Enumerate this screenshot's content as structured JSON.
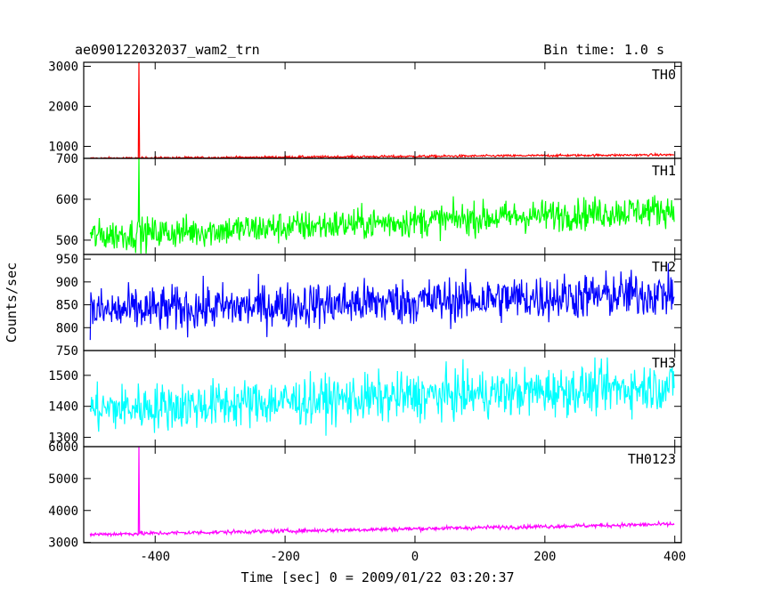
{
  "title_left": "ae090122032037_wam2_trn",
  "title_right": "Bin time: 1.0 s",
  "ylabel": "Counts/sec",
  "xlabel": "Time [sec] 0 = 2009/01/22 03:20:37",
  "chart_data": {
    "type": "line",
    "xlim": [
      -510,
      410
    ],
    "xticks": [
      -400,
      -200,
      0,
      200,
      400
    ],
    "x_range": [
      -500,
      399
    ],
    "x_step": 1,
    "panels": [
      {
        "name": "TH0",
        "color": "#ff0000",
        "ylim": [
          700,
          3100
        ],
        "yticks": [
          1000,
          2000,
          3000
        ],
        "baseline_start": 700,
        "baseline_end": 790,
        "noise": 20,
        "spike": {
          "x": -425,
          "y": 3120
        }
      },
      {
        "name": "TH1",
        "color": "#00ff00",
        "ylim": [
          465,
          700
        ],
        "yticks": [
          500,
          600,
          700
        ],
        "baseline_start": 510,
        "baseline_end": 575,
        "noise": 28,
        "spike": {
          "x": -425,
          "y": 705
        }
      },
      {
        "name": "TH2",
        "color": "#0000ff",
        "ylim": [
          750,
          960
        ],
        "yticks": [
          750,
          800,
          850,
          900,
          950
        ],
        "baseline_start": 835,
        "baseline_end": 875,
        "noise": 36,
        "spike": null
      },
      {
        "name": "TH3",
        "color": "#00ffff",
        "ylim": [
          1270,
          1580
        ],
        "yticks": [
          1300,
          1400,
          1500
        ],
        "baseline_start": 1390,
        "baseline_end": 1465,
        "noise": 55,
        "spike": null
      },
      {
        "name": "TH0123",
        "color": "#ff00ff",
        "ylim": [
          2990,
          6000
        ],
        "yticks": [
          3000,
          4000,
          5000,
          6000
        ],
        "baseline_start": 3250,
        "baseline_end": 3570,
        "noise": 45,
        "spike": {
          "x": -425,
          "y": 6000
        }
      }
    ]
  }
}
